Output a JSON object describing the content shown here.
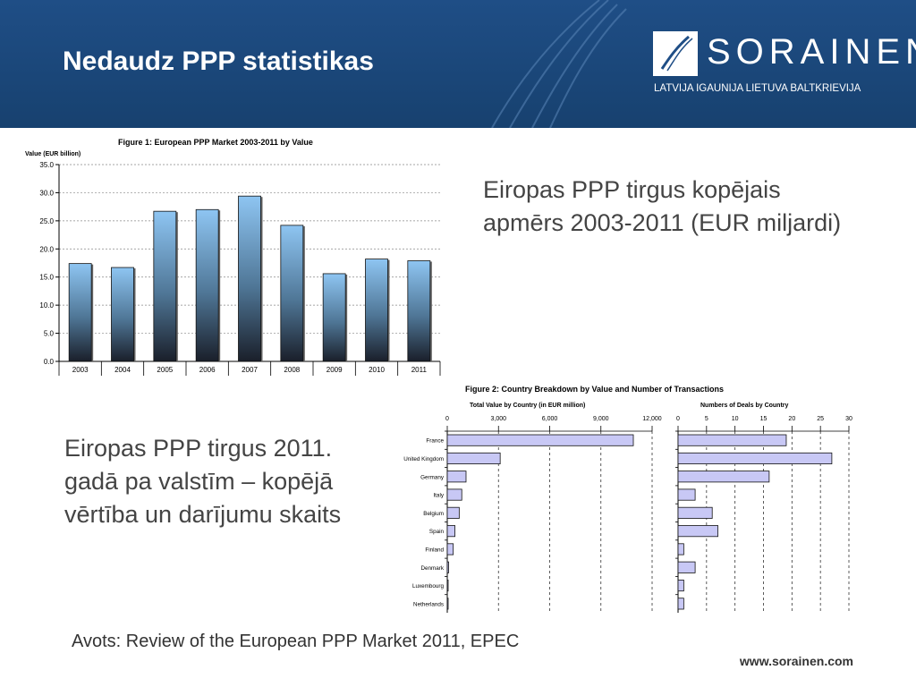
{
  "slide": {
    "title": "Nedaudz PPP statistikas",
    "brand": "SORAINEN",
    "countries": "LATVIJA IGAUNIJA LIETUVA BALTKRIEVIJA",
    "caption_top": "Eiropas PPP tirgus kopējais apmērs 2003-2011 (EUR miljardi)",
    "caption_bottom": "Eiropas PPP tirgus 2011. gadā pa valstīm – kopējā vērtība un darījumu skaits",
    "source": "Avots: Review of the European PPP Market 2011, EPEC",
    "website": "www.sorainen.com",
    "colors": {
      "header": "#1f4e86",
      "bar_top": "#8ec5f2",
      "bar_bottom": "#1a1f2a",
      "hbar_fill": "#c8c8f5"
    }
  },
  "chart_data": [
    {
      "type": "bar",
      "title": "Figure 1: European PPP Market 2003-2011 by Value",
      "ylabel": "Value (EUR billion)",
      "categories": [
        "2003",
        "2004",
        "2005",
        "2006",
        "2007",
        "2008",
        "2009",
        "2010",
        "2011"
      ],
      "values": [
        17.4,
        16.7,
        26.7,
        27.0,
        29.4,
        24.2,
        15.6,
        18.2,
        17.9
      ],
      "ylim": [
        0,
        35
      ],
      "yticks": [
        "0.0",
        "5.0",
        "10.0",
        "15.0",
        "20.0",
        "25.0",
        "30.0",
        "35.0"
      ],
      "grid": true
    },
    {
      "type": "bar",
      "orientation": "horizontal",
      "figure_title": "Figure 2: Country Breakdown by Value and Number of Transactions",
      "title": "Total Value by Country (in EUR million)",
      "categories": [
        "France",
        "United Kingdom",
        "Germany",
        "Italy",
        "Belgium",
        "Spain",
        "Finland",
        "Denmark",
        "Luxembourg",
        "Netherlands"
      ],
      "values": [
        10900,
        3100,
        1100,
        850,
        700,
        450,
        350,
        80,
        20,
        10
      ],
      "xlim": [
        0,
        12000
      ],
      "xticks": [
        "0",
        "3,000",
        "6,000",
        "9,000",
        "12,000"
      ],
      "grid": true
    },
    {
      "type": "bar",
      "orientation": "horizontal",
      "title": "Numbers of Deals by Country",
      "categories": [
        "France",
        "United Kingdom",
        "Germany",
        "Italy",
        "Belgium",
        "Spain",
        "Finland",
        "Denmark",
        "Luxembourg",
        "Netherlands"
      ],
      "values": [
        19,
        27,
        16,
        3,
        6,
        7,
        1,
        3,
        1,
        1
      ],
      "xlim": [
        0,
        30
      ],
      "xticks": [
        "0",
        "5",
        "10",
        "15",
        "20",
        "25",
        "30"
      ],
      "grid": true
    }
  ]
}
